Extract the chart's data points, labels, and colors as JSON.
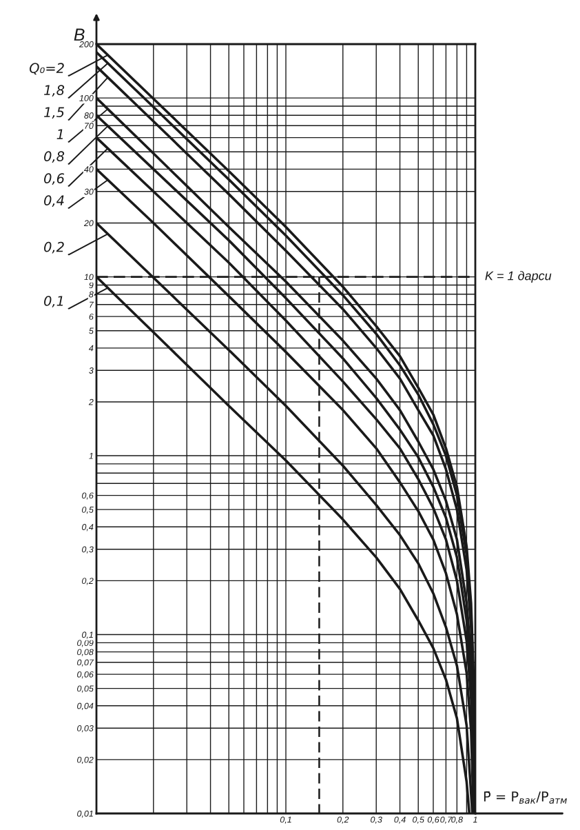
{
  "chart_data": {
    "type": "line",
    "xlabel": "P̄ = P$_{вак}$/P$_{атм}$",
    "ylabel": "B",
    "log": "xy",
    "grid": true,
    "line_style": "solid",
    "legend": "left",
    "xlim": [
      0.01,
      1
    ],
    "ylim": [
      0.01,
      200
    ],
    "xticks": [
      {
        "value": 0.01,
        "label": null
      },
      {
        "value": 0.02,
        "label": null
      },
      {
        "value": 0.03,
        "label": null
      },
      {
        "value": 0.04,
        "label": null
      },
      {
        "value": 0.05,
        "label": null
      },
      {
        "value": 0.06,
        "label": null
      },
      {
        "value": 0.07,
        "label": null
      },
      {
        "value": 0.08,
        "label": null
      },
      {
        "value": 0.09,
        "label": null
      },
      {
        "value": 0.1,
        "label": "0,1"
      },
      {
        "value": 0.2,
        "label": "0,2"
      },
      {
        "value": 0.3,
        "label": "0,3"
      },
      {
        "value": 0.4,
        "label": "0,4"
      },
      {
        "value": 0.5,
        "label": "0,5"
      },
      {
        "value": 0.6,
        "label": "0,6"
      },
      {
        "value": 0.7,
        "label": "0,7"
      },
      {
        "value": 0.8,
        "label": "0,8"
      },
      {
        "value": 0.9,
        "label": null
      },
      1
    ],
    "yticks": [
      {
        "value": 0.01,
        "label": "0,01"
      },
      {
        "value": 0.02,
        "label": "0,02"
      },
      {
        "value": 0.03,
        "label": "0,03"
      },
      {
        "value": 0.04,
        "label": "0,04"
      },
      {
        "value": 0.05,
        "label": "0,05"
      },
      {
        "value": 0.06,
        "label": "0,06"
      },
      {
        "value": 0.07,
        "label": "0,07"
      },
      {
        "value": 0.08,
        "label": "0,08"
      },
      {
        "value": 0.09,
        "label": "0,09"
      },
      {
        "value": 0.1,
        "label": "0,1"
      },
      {
        "value": 0.2,
        "label": "0,2"
      },
      {
        "value": 0.3,
        "label": "0,3"
      },
      {
        "value": 0.4,
        "label": "0,4"
      },
      {
        "value": 0.5,
        "label": "0,5"
      },
      {
        "value": 0.6,
        "label": "0,6"
      },
      {
        "value": 0.7,
        "label": null
      },
      {
        "value": 0.8,
        "label": null
      },
      {
        "value": 0.9,
        "label": null
      },
      1,
      2,
      3,
      4,
      5,
      6,
      7,
      8,
      9,
      10,
      20,
      30,
      40,
      {
        "value": 50,
        "label": null
      },
      {
        "value": 60,
        "label": null
      },
      70,
      80,
      {
        "value": 90,
        "label": null
      },
      100,
      200
    ],
    "ref_lines": [
      {
        "axis": "y",
        "value": 10,
        "line_style": "dashed",
        "color": "#1a1a1a"
      }
    ],
    "annotations": [
      {
        "text": "K = 1 дарси",
        "x": 1,
        "y": 10
      }
    ],
    "series": [
      {
        "name": "Q₀=2",
        "color": "#1a1a1a",
        "x": [
          0.01,
          0.02,
          0.05,
          0.1,
          0.2,
          0.3,
          0.4,
          0.5,
          0.6,
          0.7,
          0.8,
          0.9,
          0.95,
          0.98,
          0.99,
          1
        ],
        "values": [
          200,
          99,
          39,
          19,
          8.8,
          5.3,
          3.6,
          2.4,
          1.7,
          1.1,
          0.67,
          0.31,
          0.15,
          0.057,
          0.029,
          0.01
        ]
      },
      {
        "name": "1,8",
        "color": "#1a1a1a",
        "x": [
          0.01,
          0.02,
          0.05,
          0.1,
          0.2,
          0.3,
          0.4,
          0.5,
          0.6,
          0.7,
          0.8,
          0.9,
          0.95,
          0.98,
          0.99,
          1
        ],
        "values": [
          180,
          89,
          35,
          17,
          7.9,
          4.8,
          3.2,
          2.2,
          1.5,
          1.0,
          0.6,
          0.28,
          0.13,
          0.052,
          0.026,
          0.01
        ]
      },
      {
        "name": "1,5",
        "color": "#1a1a1a",
        "x": [
          0.01,
          0.02,
          0.05,
          0.1,
          0.2,
          0.3,
          0.4,
          0.5,
          0.6,
          0.7,
          0.8,
          0.9,
          0.95,
          0.98,
          0.99,
          1
        ],
        "values": [
          150,
          74,
          29,
          14,
          6.6,
          4.0,
          2.7,
          1.8,
          1.3,
          0.84,
          0.5,
          0.23,
          0.11,
          0.043,
          0.021,
          0.01
        ]
      },
      {
        "name": "1",
        "color": "#1a1a1a",
        "x": [
          0.01,
          0.02,
          0.05,
          0.1,
          0.2,
          0.3,
          0.4,
          0.5,
          0.6,
          0.7,
          0.8,
          0.9,
          0.95,
          0.98,
          0.99,
          1
        ],
        "values": [
          100,
          49,
          19,
          9.4,
          4.4,
          2.7,
          1.8,
          1.2,
          0.84,
          0.56,
          0.34,
          0.15,
          0.074,
          0.029,
          0.014,
          0.01
        ]
      },
      {
        "name": "0,8",
        "color": "#1a1a1a",
        "x": [
          0.01,
          0.02,
          0.05,
          0.1,
          0.2,
          0.3,
          0.4,
          0.5,
          0.6,
          0.7,
          0.8,
          0.9,
          0.95,
          0.98,
          0.99,
          1
        ],
        "values": [
          80,
          40,
          16,
          7.6,
          3.5,
          2.1,
          1.4,
          0.98,
          0.67,
          0.45,
          0.27,
          0.12,
          0.059,
          0.023,
          0.011,
          0.01
        ]
      },
      {
        "name": "0,6",
        "color": "#1a1a1a",
        "x": [
          0.01,
          0.02,
          0.05,
          0.1,
          0.2,
          0.3,
          0.4,
          0.5,
          0.6,
          0.7,
          0.8,
          0.9,
          0.95,
          0.98,
          0.99
        ],
        "values": [
          60,
          30,
          12,
          5.7,
          2.6,
          1.6,
          1.1,
          0.74,
          0.51,
          0.34,
          0.2,
          0.092,
          0.044,
          0.017,
          0.01
        ]
      },
      {
        "name": "0,4",
        "color": "#1a1a1a",
        "x": [
          0.01,
          0.02,
          0.05,
          0.1,
          0.2,
          0.3,
          0.4,
          0.5,
          0.6,
          0.7,
          0.8,
          0.9,
          0.95,
          0.98
        ],
        "values": [
          40,
          20,
          7.8,
          3.8,
          1.8,
          1.1,
          0.71,
          0.49,
          0.34,
          0.22,
          0.13,
          0.061,
          0.029,
          0.01
        ]
      },
      {
        "name": "0,2",
        "color": "#1a1a1a",
        "x": [
          0.01,
          0.02,
          0.05,
          0.1,
          0.2,
          0.3,
          0.4,
          0.5,
          0.6,
          0.7,
          0.8,
          0.9,
          0.965
        ],
        "values": [
          20,
          9.9,
          3.9,
          1.9,
          0.88,
          0.53,
          0.36,
          0.25,
          0.17,
          0.11,
          0.067,
          0.031,
          0.01
        ]
      },
      {
        "name": "0,1",
        "color": "#1a1a1a",
        "x": [
          0.01,
          0.02,
          0.05,
          0.1,
          0.2,
          0.3,
          0.4,
          0.5,
          0.6,
          0.7,
          0.8,
          0.9,
          0.93
        ],
        "values": [
          10,
          4.9,
          1.9,
          0.94,
          0.44,
          0.27,
          0.18,
          0.12,
          0.084,
          0.056,
          0.034,
          0.015,
          0.01
        ]
      },
      {
        "type": "line",
        "color": "#1a1a1a",
        "line_style": "dashed",
        "x": [
          0.15,
          0.15
        ],
        "values": [
          10,
          0.01
        ]
      }
    ]
  }
}
